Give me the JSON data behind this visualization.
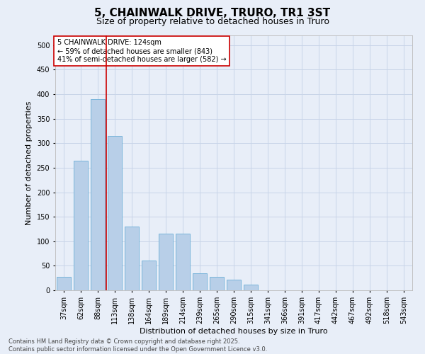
{
  "title": "5, CHAINWALK DRIVE, TRURO, TR1 3ST",
  "subtitle": "Size of property relative to detached houses in Truro",
  "xlabel": "Distribution of detached houses by size in Truro",
  "ylabel": "Number of detached properties",
  "categories": [
    "37sqm",
    "62sqm",
    "88sqm",
    "113sqm",
    "138sqm",
    "164sqm",
    "189sqm",
    "214sqm",
    "239sqm",
    "265sqm",
    "290sqm",
    "315sqm",
    "341sqm",
    "366sqm",
    "391sqm",
    "417sqm",
    "442sqm",
    "467sqm",
    "492sqm",
    "518sqm",
    "543sqm"
  ],
  "values": [
    28,
    265,
    390,
    315,
    130,
    60,
    115,
    115,
    35,
    28,
    22,
    12,
    0,
    0,
    0,
    0,
    0,
    0,
    0,
    0,
    0
  ],
  "bar_color": "#b8cfe8",
  "bar_edge_color": "#6baed6",
  "vline_x": 3.0,
  "vline_color": "#cc0000",
  "annotation_box_text": "5 CHAINWALK DRIVE: 124sqm\n← 59% of detached houses are smaller (843)\n41% of semi-detached houses are larger (582) →",
  "ylim": [
    0,
    520
  ],
  "yticks": [
    0,
    50,
    100,
    150,
    200,
    250,
    300,
    350,
    400,
    450,
    500
  ],
  "grid_color": "#c8d4e8",
  "background_color": "#e8eef8",
  "footer_text": "Contains HM Land Registry data © Crown copyright and database right 2025.\nContains public sector information licensed under the Open Government Licence v3.0.",
  "title_fontsize": 11,
  "subtitle_fontsize": 9,
  "tick_fontsize": 7,
  "ylabel_fontsize": 8,
  "xlabel_fontsize": 8,
  "annotation_fontsize": 7,
  "footer_fontsize": 6
}
